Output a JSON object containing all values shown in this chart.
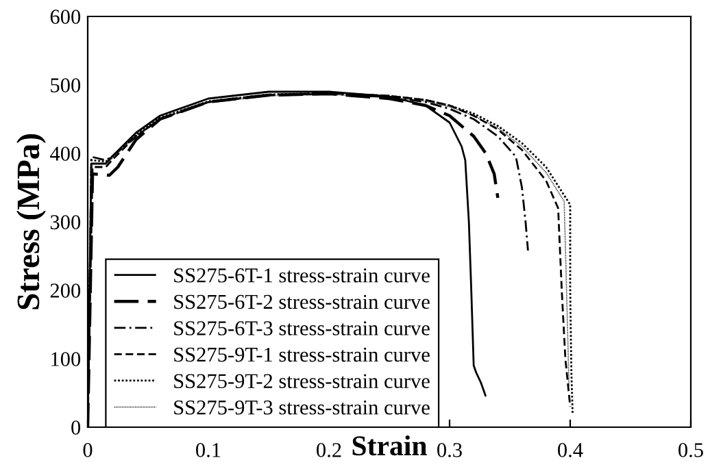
{
  "chart_data": {
    "type": "line",
    "xlabel": "Strain",
    "ylabel": "Stress (MPa)",
    "xlim": [
      0,
      0.5
    ],
    "ylim": [
      0,
      600
    ],
    "xticks": [
      0,
      0.1,
      0.2,
      0.3,
      0.4,
      0.5
    ],
    "yticks": [
      0,
      100,
      200,
      300,
      400,
      500,
      600
    ],
    "grid": false,
    "legend": "bottom left",
    "marker": "none",
    "series": [
      {
        "name": "SS275-6T-1 stress-strain curve",
        "color": "#000000",
        "line_style": "solid",
        "x": [
          0,
          0.003,
          0.015,
          0.02,
          0.04,
          0.06,
          0.1,
          0.15,
          0.2,
          0.25,
          0.28,
          0.3,
          0.31,
          0.313,
          0.316,
          0.318,
          0.32,
          0.322,
          0.326,
          0.33
        ],
        "values": [
          0,
          385,
          385,
          395,
          430,
          455,
          480,
          490,
          490,
          483,
          470,
          445,
          410,
          390,
          300,
          200,
          90,
          80,
          65,
          45
        ]
      },
      {
        "name": "SS275-6T-2 stress-strain curve",
        "color": "#000000",
        "line_style": "longdash",
        "x": [
          0,
          0.004,
          0.018,
          0.025,
          0.04,
          0.06,
          0.1,
          0.15,
          0.2,
          0.25,
          0.28,
          0.3,
          0.32,
          0.33,
          0.337,
          0.34
        ],
        "values": [
          0,
          370,
          368,
          380,
          420,
          450,
          475,
          485,
          487,
          480,
          470,
          455,
          425,
          400,
          370,
          335
        ]
      },
      {
        "name": "SS275-6T-3 stress-strain curve",
        "color": "#000000",
        "line_style": "dashdot",
        "x": [
          0,
          0.003,
          0.015,
          0.02,
          0.04,
          0.06,
          0.1,
          0.15,
          0.2,
          0.25,
          0.28,
          0.3,
          0.32,
          0.34,
          0.355,
          0.36,
          0.363,
          0.365
        ],
        "values": [
          0,
          395,
          390,
          395,
          425,
          450,
          475,
          485,
          487,
          482,
          475,
          465,
          450,
          425,
          395,
          350,
          300,
          258
        ]
      },
      {
        "name": "SS275-9T-1 stress-strain curve",
        "color": "#000000",
        "line_style": "dashed",
        "x": [
          0,
          0.004,
          0.015,
          0.02,
          0.04,
          0.06,
          0.1,
          0.15,
          0.2,
          0.25,
          0.28,
          0.3,
          0.32,
          0.34,
          0.36,
          0.38,
          0.39,
          0.393,
          0.396,
          0.4
        ],
        "values": [
          0,
          380,
          380,
          390,
          425,
          450,
          475,
          485,
          488,
          484,
          478,
          470,
          455,
          435,
          405,
          360,
          320,
          200,
          100,
          30
        ]
      },
      {
        "name": "SS275-9T-2 stress-strain curve",
        "color": "#000000",
        "line_style": "dotted",
        "x": [
          0,
          0.003,
          0.015,
          0.02,
          0.04,
          0.06,
          0.1,
          0.15,
          0.2,
          0.25,
          0.28,
          0.3,
          0.32,
          0.34,
          0.36,
          0.38,
          0.4,
          0.4,
          0.401,
          0.402
        ],
        "values": [
          0,
          390,
          388,
          395,
          428,
          452,
          476,
          486,
          488,
          484,
          478,
          470,
          458,
          440,
          415,
          380,
          325,
          200,
          80,
          20
        ]
      },
      {
        "name": "SS275-9T-3 stress-strain curve",
        "color": "#000000",
        "line_style": "finedot",
        "x": [
          0,
          0.003,
          0.015,
          0.02,
          0.04,
          0.06,
          0.1,
          0.15,
          0.2,
          0.25,
          0.28,
          0.3,
          0.32,
          0.34,
          0.36,
          0.38,
          0.395,
          0.397,
          0.399
        ],
        "values": [
          0,
          385,
          385,
          392,
          426,
          450,
          474,
          484,
          486,
          482,
          476,
          468,
          455,
          437,
          410,
          372,
          330,
          200,
          60
        ]
      }
    ]
  }
}
